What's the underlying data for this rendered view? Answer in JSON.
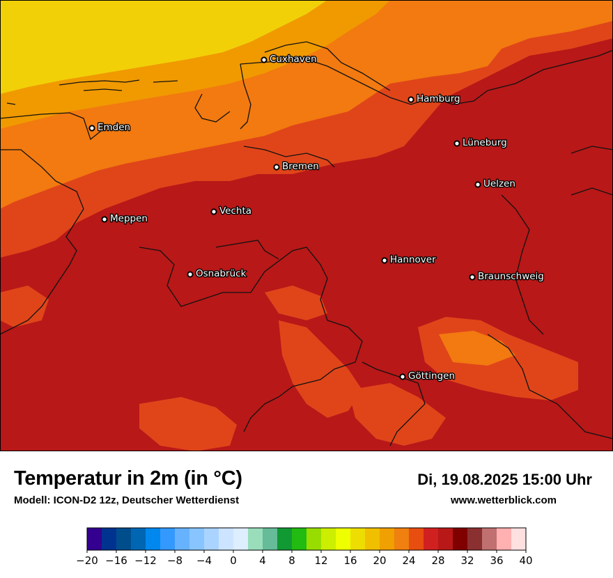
{
  "map": {
    "title": "Temperatur in 2m (in °C)",
    "model": "Modell: ICON-D2 12z, Deutscher Wetterdienst",
    "datetime": "Di, 19.08.2025 15:00 Uhr",
    "website": "www.wetterblick.com",
    "cities": [
      {
        "name": "Cuxhaven"
      },
      {
        "name": "Hamburg"
      },
      {
        "name": "Emden"
      },
      {
        "name": "Lüneburg"
      },
      {
        "name": "Bremen"
      },
      {
        "name": "Uelzen"
      },
      {
        "name": "Vechta"
      },
      {
        "name": "Meppen"
      },
      {
        "name": "Hannover"
      },
      {
        "name": "Osnabrück"
      },
      {
        "name": "Braunschweig"
      },
      {
        "name": "Göttingen"
      }
    ]
  },
  "legend": {
    "ticks": [
      "−20",
      "−16",
      "−12",
      "−8",
      "−4",
      "0",
      "4",
      "8",
      "12",
      "16",
      "20",
      "24",
      "28",
      "32",
      "36",
      "40"
    ],
    "colors": [
      "#33008f",
      "#00338f",
      "#004d8c",
      "#0066b3",
      "#0088ee",
      "#3399ff",
      "#66b2ff",
      "#88c4ff",
      "#aad4ff",
      "#cce4ff",
      "#ddeeff",
      "#99ddbb",
      "#66bb99",
      "#119933",
      "#22bb11",
      "#99dd00",
      "#ccee00",
      "#eeff00",
      "#eedd00",
      "#f0c000",
      "#f0a000",
      "#f08010",
      "#e84e10",
      "#d02020",
      "#b81818",
      "#800000",
      "#8b3030",
      "#c07070",
      "#ffb0b0",
      "#ffe0e0"
    ]
  }
}
